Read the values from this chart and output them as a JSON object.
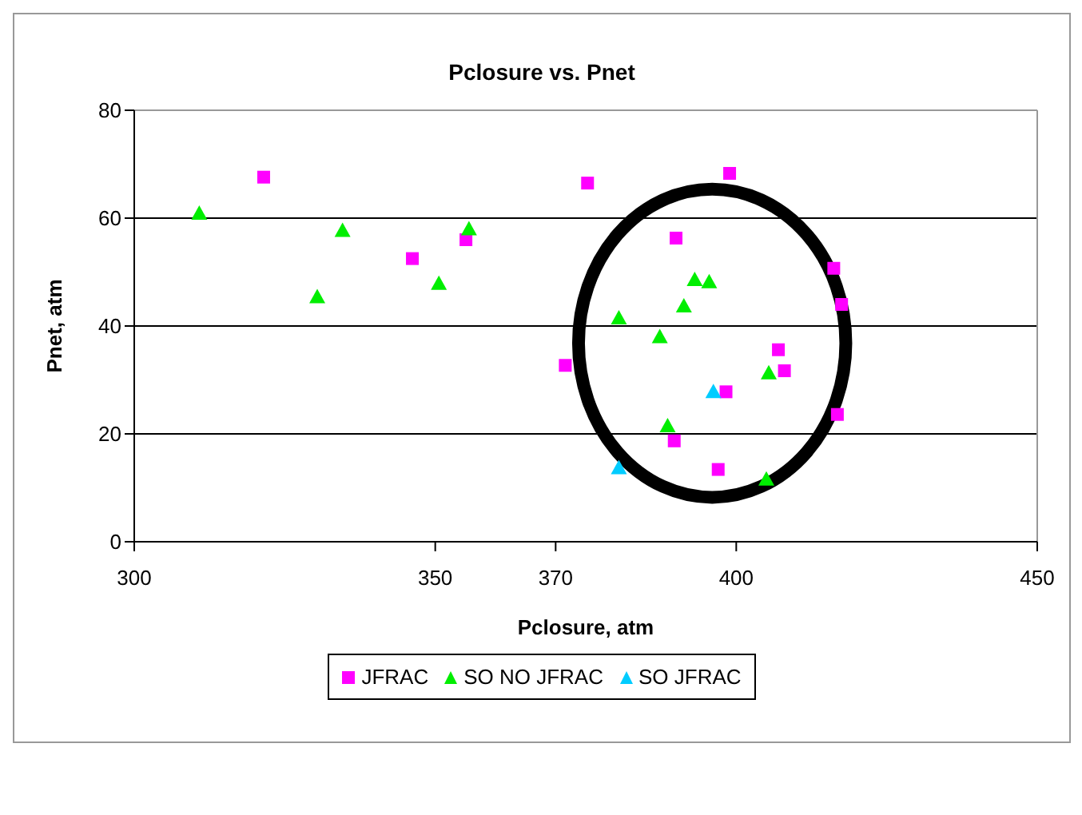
{
  "chart_data": {
    "type": "scatter",
    "title": "Pclosure vs. Pnet",
    "xlabel": "Pclosure, atm",
    "ylabel": "Pnet, atm",
    "xlim": [
      300,
      450
    ],
    "xticks": [
      300,
      350,
      370,
      400,
      450
    ],
    "ylim": [
      0,
      80
    ],
    "yticks": [
      0,
      20,
      40,
      60,
      80
    ],
    "grid": "y",
    "legend": "bottom",
    "series": [
      {
        "name": "JFRAC",
        "color": "#ff00ff",
        "marker": "square",
        "x": [
          321.5,
          346.2,
          355.1,
          375.3,
          371.6,
          398.9,
          390,
          389.7,
          397,
          398.3,
          407,
          408,
          416.2,
          417.5,
          416.8
        ],
        "values": [
          67.6,
          52.5,
          56,
          66.5,
          32.7,
          68.3,
          56.3,
          18.7,
          13.4,
          27.8,
          35.6,
          31.7,
          50.7,
          44,
          23.6
        ]
      },
      {
        "name": "SO NO JFRAC",
        "color": "#00ee00",
        "marker": "triangle",
        "x": [
          310.8,
          330.4,
          334.6,
          350.6,
          355.6,
          380.5,
          387.3,
          391.3,
          393.1,
          395.5,
          388.6,
          405.4,
          405
        ],
        "values": [
          60.9,
          45.4,
          57.7,
          47.9,
          58,
          41.5,
          38,
          43.7,
          48.6,
          48.2,
          21.5,
          31.3,
          11.6
        ]
      },
      {
        "name": "SO JFRAC",
        "color": "#00ccff",
        "marker": "triangle",
        "x": [
          396.2,
          380.5
        ],
        "values": [
          27.8,
          13.7
        ]
      }
    ]
  }
}
